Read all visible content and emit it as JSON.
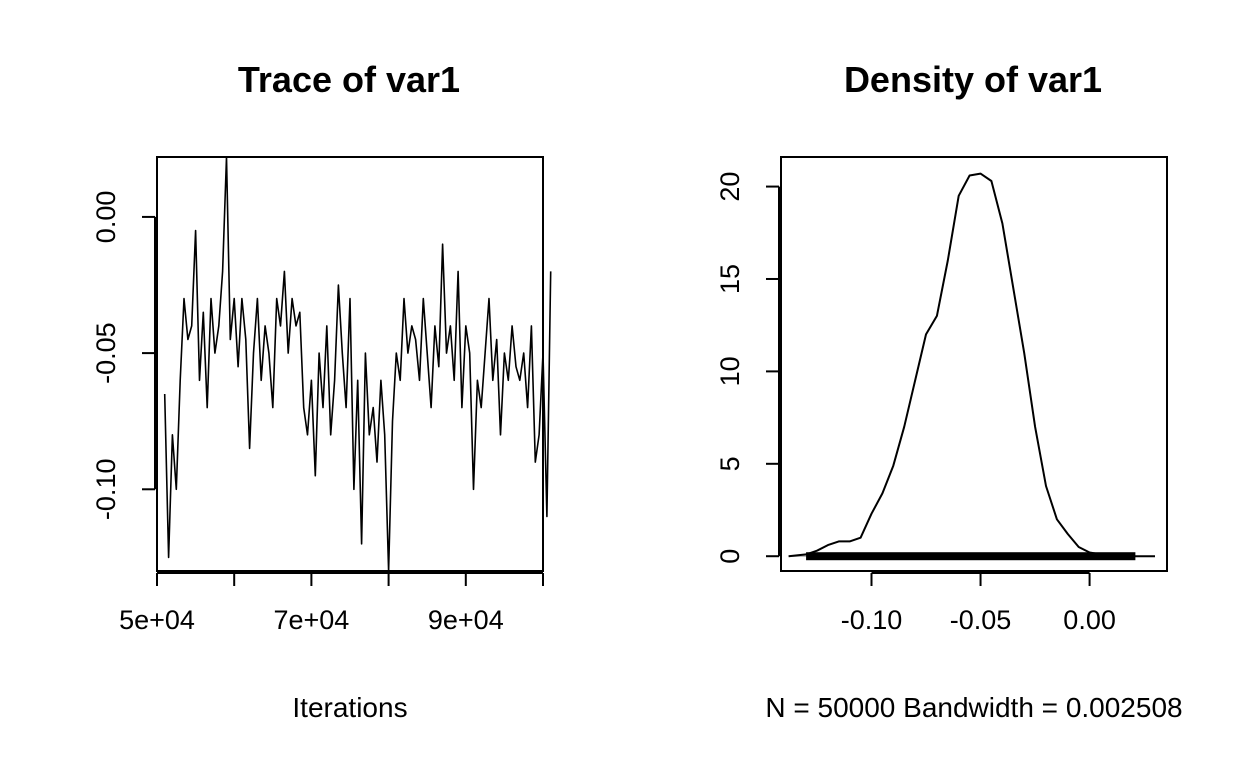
{
  "chart_data": [
    {
      "type": "line",
      "title": "Trace of var1",
      "xlabel": "Iterations",
      "ylabel": "",
      "xlim": [
        50001,
        100000
      ],
      "ylim": [
        -0.13,
        0.022
      ],
      "x_ticks": [
        50000,
        60000,
        70000,
        80000,
        90000,
        100000
      ],
      "x_tick_labels": [
        "5e+04",
        "",
        "7e+04",
        "",
        "9e+04",
        ""
      ],
      "y_ticks": [
        -0.1,
        -0.05,
        0.0
      ],
      "y_tick_labels": [
        "-0.10",
        "-0.05",
        "0.00"
      ],
      "grid": false,
      "series": [
        {
          "x": [
            51000,
            51500,
            52000,
            52500,
            53000,
            53500,
            54000,
            54500,
            55000,
            55500,
            56000,
            56500,
            57000,
            57500,
            58000,
            58500,
            59000,
            59500,
            60000,
            60500,
            61000,
            61500,
            62000,
            62500,
            63000,
            63500,
            64000,
            64500,
            65000,
            65500,
            66000,
            66500,
            67000,
            67500,
            68000,
            68500,
            69000,
            69500,
            70000,
            70500,
            71000,
            71500,
            72000,
            72500,
            73000,
            73500,
            74000,
            74500,
            75000,
            75500,
            76000,
            76500,
            77000,
            77500,
            78000,
            78500,
            79000,
            79500,
            80000,
            80500,
            81000,
            81500,
            82000,
            82500,
            83000,
            83500,
            84000,
            84500,
            85000,
            85500,
            86000,
            86500,
            87000,
            87500,
            88000,
            88500,
            89000,
            89500,
            90000,
            90500,
            91000,
            91500,
            92000,
            92500,
            93000,
            93500,
            94000,
            94500,
            95000,
            95500,
            96000,
            96500,
            97000,
            97500,
            98000,
            98500,
            99000,
            99500,
            100000,
            100500,
            101000
          ],
          "values": [
            -0.065,
            -0.125,
            -0.08,
            -0.1,
            -0.06,
            -0.03,
            -0.045,
            -0.04,
            -0.005,
            -0.06,
            -0.035,
            -0.07,
            -0.03,
            -0.05,
            -0.04,
            -0.02,
            0.022,
            -0.045,
            -0.03,
            -0.055,
            -0.03,
            -0.045,
            -0.085,
            -0.05,
            -0.03,
            -0.06,
            -0.04,
            -0.05,
            -0.07,
            -0.03,
            -0.04,
            -0.02,
            -0.05,
            -0.03,
            -0.04,
            -0.035,
            -0.07,
            -0.08,
            -0.06,
            -0.095,
            -0.05,
            -0.07,
            -0.04,
            -0.08,
            -0.06,
            -0.025,
            -0.05,
            -0.07,
            -0.03,
            -0.1,
            -0.06,
            -0.12,
            -0.05,
            -0.08,
            -0.07,
            -0.09,
            -0.06,
            -0.08,
            -0.13,
            -0.075,
            -0.05,
            -0.06,
            -0.03,
            -0.05,
            -0.04,
            -0.045,
            -0.06,
            -0.03,
            -0.05,
            -0.07,
            -0.04,
            -0.055,
            -0.01,
            -0.05,
            -0.04,
            -0.06,
            -0.02,
            -0.07,
            -0.04,
            -0.05,
            -0.1,
            -0.06,
            -0.07,
            -0.05,
            -0.03,
            -0.06,
            -0.045,
            -0.08,
            -0.05,
            -0.06,
            -0.04,
            -0.055,
            -0.06,
            -0.05,
            -0.07,
            -0.04,
            -0.09,
            -0.08,
            -0.05,
            -0.11,
            -0.02
          ]
        }
      ]
    },
    {
      "type": "line",
      "title": "Density of var1",
      "xlabel": "N = 50000   Bandwidth = 0.002508",
      "ylabel": "",
      "xlim": [
        -0.1415,
        0.0355
      ],
      "ylim": [
        -0.8,
        21.6
      ],
      "x_ticks": [
        -0.1,
        -0.05,
        0.0
      ],
      "x_tick_labels": [
        "-0.10",
        "-0.05",
        "0.00"
      ],
      "y_ticks": [
        0,
        5,
        10,
        15,
        20
      ],
      "y_tick_labels": [
        "0",
        "5",
        "10",
        "15",
        "20"
      ],
      "grid": false,
      "rug_range": [
        -0.13,
        0.021
      ],
      "series": [
        {
          "x": [
            -0.138,
            -0.13,
            -0.125,
            -0.12,
            -0.115,
            -0.11,
            -0.105,
            -0.1,
            -0.095,
            -0.09,
            -0.085,
            -0.08,
            -0.075,
            -0.07,
            -0.065,
            -0.06,
            -0.055,
            -0.05,
            -0.045,
            -0.04,
            -0.035,
            -0.03,
            -0.025,
            -0.02,
            -0.015,
            -0.01,
            -0.005,
            0.0,
            0.005,
            0.01,
            0.015,
            0.02,
            0.025,
            0.03
          ],
          "values": [
            0.0,
            0.1,
            0.3,
            0.6,
            0.8,
            0.8,
            1.0,
            2.3,
            3.4,
            4.9,
            7.0,
            9.5,
            12.0,
            13.0,
            16.0,
            19.5,
            20.6,
            20.7,
            20.3,
            18.0,
            14.5,
            11.0,
            7.0,
            3.8,
            2.0,
            1.2,
            0.5,
            0.2,
            0.1,
            0.05,
            0.05,
            0.0,
            0.0,
            0.0
          ]
        }
      ]
    }
  ]
}
